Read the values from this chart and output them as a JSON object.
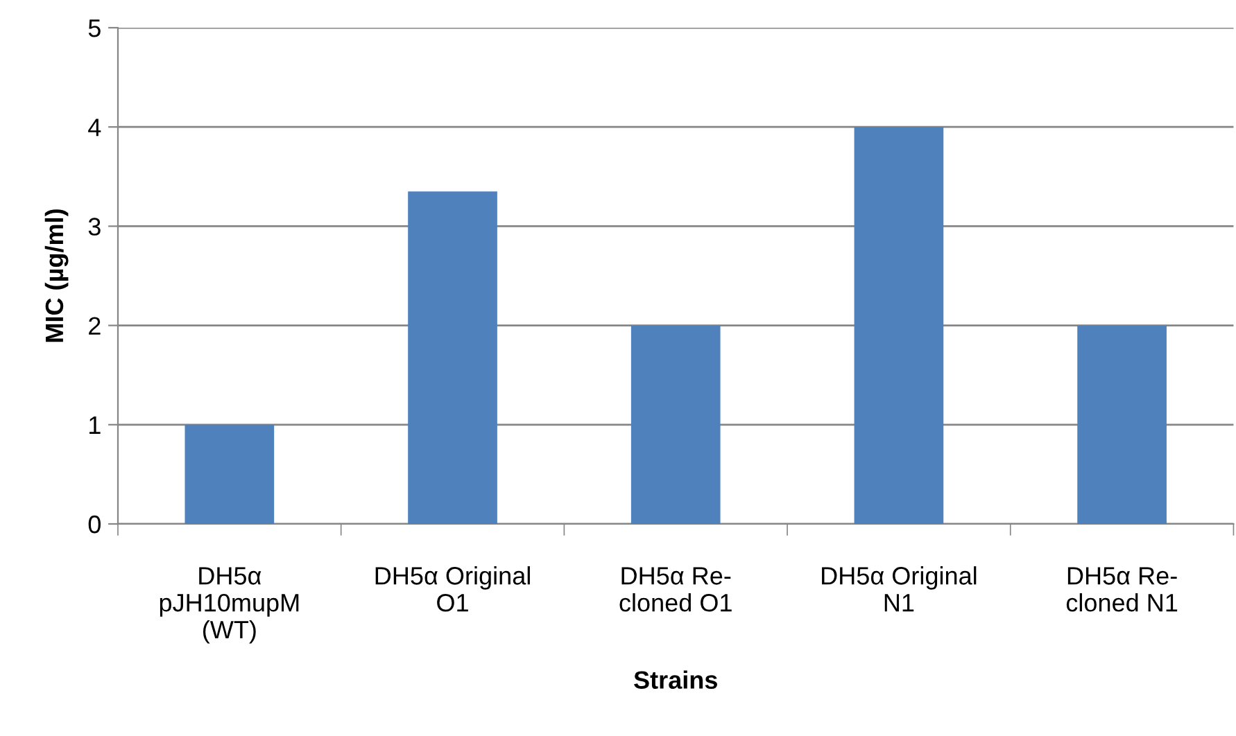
{
  "chart_data": {
    "type": "bar",
    "categories": [
      "DH5α\npJH10mupM\n(WT)",
      "DH5α Original\nO1",
      "DH5α Re-\ncloned O1",
      "DH5α Original\nN1",
      "DH5α Re-\ncloned N1"
    ],
    "values": [
      1,
      3.35,
      2,
      4,
      2
    ],
    "color": "#4f81bd",
    "xlabel": "Strains",
    "ylabel": "MIC (µg/ml)",
    "ylim": [
      0,
      5
    ],
    "yticks": [
      0,
      1,
      2,
      3,
      4,
      5
    ],
    "grid": "y",
    "legend": false
  }
}
